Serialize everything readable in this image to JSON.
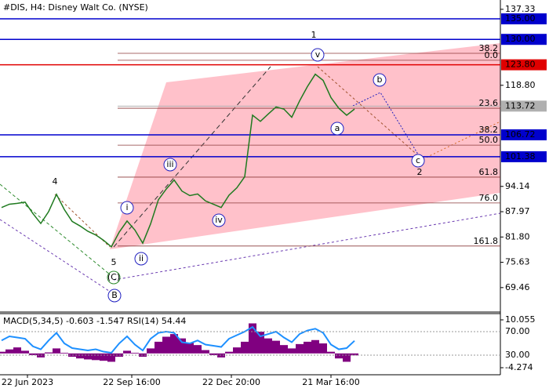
{
  "chart_data": {
    "type": "line",
    "title": "#DIS, H4:  Disney Walt Co. (NYSE)",
    "x_labels": [
      "22 Jun 2023",
      "22 Sep 16:00",
      "22 Dec 20:00",
      "21 Mar 16:00"
    ],
    "values": [
      89.0,
      89.8,
      90.0,
      90.3,
      87.5,
      85.1,
      88.0,
      92.2,
      88.5,
      85.6,
      84.5,
      83.2,
      82.3,
      81.0,
      79.4,
      83.0,
      85.7,
      83.5,
      80.3,
      85.0,
      90.9,
      93.5,
      95.7,
      93.0,
      91.9,
      92.3,
      90.6,
      89.8,
      89.0,
      92.0,
      93.8,
      96.5,
      111.5,
      110.0,
      111.8,
      113.5,
      113.0,
      111.0,
      115.0,
      118.5,
      121.5,
      120.0,
      115.8,
      113.2,
      111.5,
      113.0
    ],
    "color": "#1f7a1f",
    "ylim": [
      63.5,
      139.6
    ],
    "yticks": [
      137.33,
      {
        "value": 118.8,
        "label": "118.80"
      },
      94.14,
      87.97,
      {
        "value": 81.8,
        "label": "81.80"
      },
      75.63,
      69.46
    ],
    "levels": [
      {
        "value": 135,
        "label": "135.00",
        "color": "#0000cd"
      },
      {
        "value": 130,
        "label": "130.00",
        "color": "#0000cd"
      },
      {
        "value": 123.8,
        "label": "123.80",
        "color": "#e00000"
      },
      {
        "value": 113.72,
        "label": "113.72",
        "color": "#b0b0b0"
      },
      {
        "value": 106.72,
        "label": "106.72",
        "color": "#0000cd"
      },
      {
        "value": 101.38,
        "label": "101.38",
        "color": "#0000cd"
      }
    ],
    "fib_levels": [
      {
        "value": 126.6,
        "label": "38.2"
      },
      {
        "value": 124.9,
        "label": "0.0"
      },
      {
        "value": 113.2,
        "label": "23.6"
      },
      {
        "value": 106.7,
        "label": "38.2"
      },
      {
        "value": 104.2,
        "label": "50.0"
      },
      {
        "value": 96.4,
        "label": "61.8"
      },
      {
        "value": 90.1,
        "label": "76.0"
      },
      {
        "value": 79.6,
        "label": "161.8"
      }
    ],
    "wave_labels": [
      "1",
      "2",
      "4",
      "5",
      "(C)",
      "B",
      "i",
      "ii",
      "iii",
      "iv",
      "v",
      "a",
      "b",
      "c"
    ],
    "indicator": {
      "title": "MACD(5,34,5) -0.603 -1.547 RSI(14) 54.44",
      "macd": [
        0.5,
        1.2,
        1.8,
        0.8,
        -0.5,
        -1.2,
        0.3,
        1.5,
        0.2,
        -1.0,
        -1.5,
        -1.8,
        -2.0,
        -2.2,
        -2.5,
        -1.0,
        0.8,
        0.2,
        -1.0,
        1.5,
        3.5,
        5.0,
        5.8,
        4.5,
        3.2,
        2.5,
        1.0,
        -0.5,
        -1.2,
        0.5,
        1.8,
        3.5,
        9.0,
        6.5,
        4.5,
        3.8,
        2.5,
        1.5,
        2.8,
        3.5,
        4.0,
        3.0,
        0.5,
        -1.5,
        -2.5,
        -0.603
      ],
      "macd_color": "#800080",
      "y2lim": [
        -6.39,
        11.93
      ],
      "y2ticks": [
        10.055,
        -4.274
      ],
      "rsi": [
        55,
        62,
        60,
        58,
        45,
        40,
        55,
        68,
        50,
        42,
        40,
        38,
        40,
        36,
        34,
        50,
        62,
        48,
        38,
        58,
        68,
        70,
        68,
        52,
        50,
        55,
        48,
        46,
        44,
        58,
        64,
        70,
        78,
        62,
        66,
        70,
        60,
        52,
        66,
        72,
        75,
        68,
        48,
        40,
        42,
        54.44
      ],
      "rsi_color": "#1e90ff",
      "rsi_lim": [
        -3.3,
        100.7
      ],
      "rsi_ticks": [
        {
          "value": 70,
          "label": "70.00"
        },
        {
          "value": 30,
          "label": "30.00"
        }
      ]
    }
  }
}
